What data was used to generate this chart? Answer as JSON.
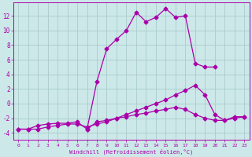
{
  "xlabel": "Windchill (Refroidissement éolien,°C)",
  "bg_color": "#cce8e8",
  "grid_color": "#aacccc",
  "line_color": "#aa00aa",
  "x_ticks": [
    0,
    1,
    2,
    3,
    4,
    5,
    6,
    7,
    8,
    9,
    10,
    11,
    12,
    13,
    14,
    15,
    16,
    17,
    18,
    19,
    20,
    21,
    22,
    23
  ],
  "y_ticks": [
    -4,
    -2,
    0,
    2,
    4,
    6,
    8,
    10,
    12
  ],
  "xlim": [
    -0.5,
    23.5
  ],
  "ylim": [
    -5.0,
    13.8
  ],
  "seriesA_x": [
    0,
    1,
    2,
    3,
    4,
    5,
    6,
    7,
    8,
    9,
    10,
    11,
    12,
    13,
    14,
    15,
    16,
    17,
    18,
    19,
    20,
    21,
    22,
    23
  ],
  "seriesA_y": [
    -3.5,
    -3.5,
    -3.0,
    -2.8,
    -2.7,
    -2.7,
    -2.5,
    -3.5,
    -2.5,
    -2.3,
    -2.0,
    -1.8,
    -1.5,
    -1.3,
    -1.0,
    -0.8,
    -0.5,
    -0.8,
    -1.5,
    -2.0,
    -2.3,
    -2.3,
    -2.0,
    -1.8
  ],
  "seriesB_x": [
    7,
    8,
    9,
    10,
    11,
    12,
    13,
    14,
    15,
    16,
    17,
    18,
    19,
    20
  ],
  "seriesB_y": [
    -3.5,
    3.0,
    7.5,
    8.8,
    10.0,
    12.5,
    11.2,
    11.8,
    13.0,
    11.8,
    12.0,
    5.5,
    5.0,
    5.0
  ],
  "seriesC_x": [
    0,
    1,
    2,
    3,
    4,
    5,
    6,
    7,
    8,
    9,
    10,
    11,
    12,
    13,
    14,
    15,
    16,
    17,
    18,
    19,
    20,
    21,
    22,
    23
  ],
  "seriesC_y": [
    -3.5,
    -3.5,
    -3.5,
    -3.2,
    -3.0,
    -2.8,
    -2.8,
    -3.2,
    -2.8,
    -2.5,
    -2.0,
    -1.5,
    -1.0,
    -0.5,
    0.0,
    0.5,
    1.2,
    1.8,
    2.5,
    1.2,
    -1.5,
    -2.3,
    -1.8,
    -1.8
  ]
}
